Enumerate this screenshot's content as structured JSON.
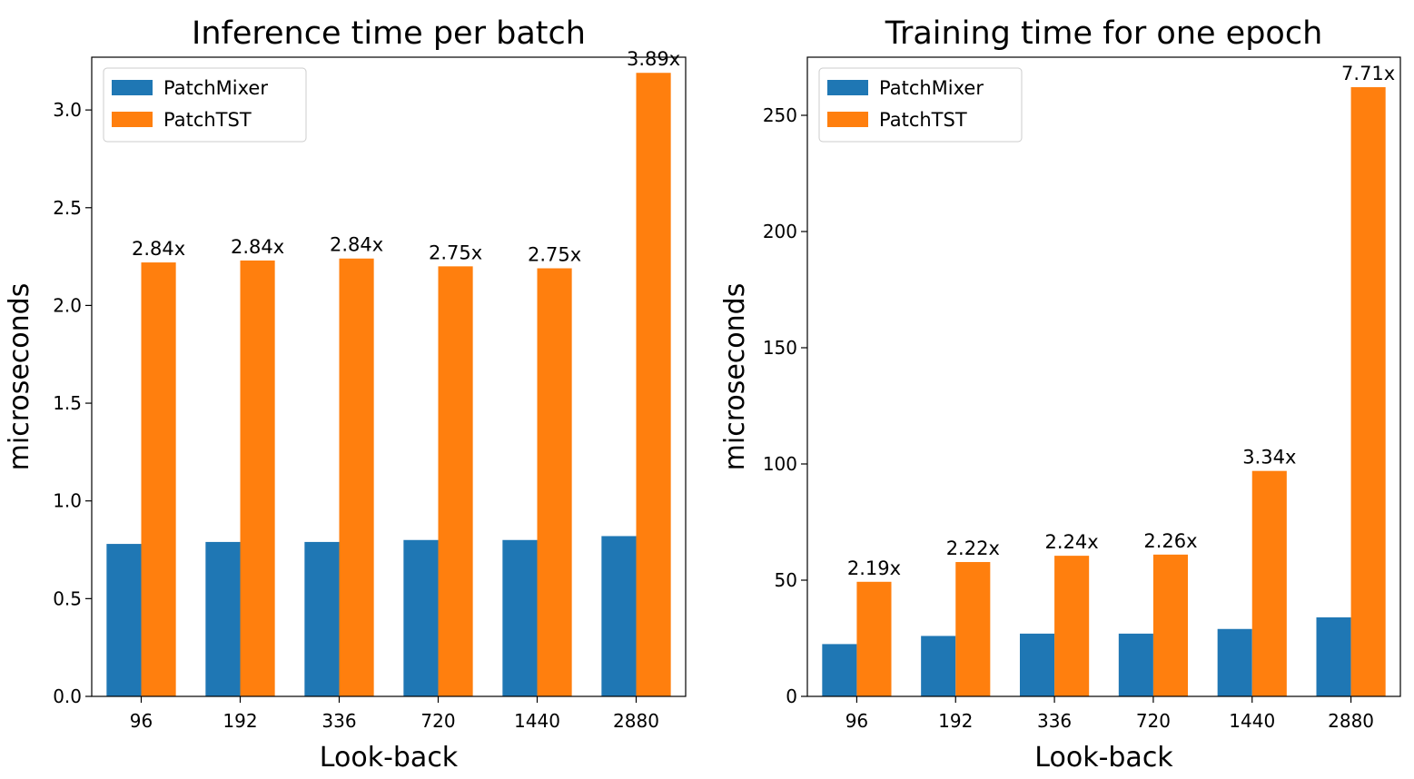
{
  "colors": {
    "PatchMixer": "#1f77b4",
    "PatchTST": "#ff7f0e"
  },
  "chart_data": [
    {
      "type": "bar",
      "title": "Inference time per batch",
      "xlabel": "Look-back",
      "ylabel": "microseconds",
      "categories": [
        "96",
        "192",
        "336",
        "720",
        "1440",
        "2880"
      ],
      "series": [
        {
          "name": "PatchMixer",
          "values": [
            0.78,
            0.79,
            0.79,
            0.8,
            0.8,
            0.82
          ]
        },
        {
          "name": "PatchTST",
          "values": [
            2.22,
            2.23,
            2.24,
            2.2,
            2.19,
            3.19
          ]
        }
      ],
      "annotations": [
        "2.84x",
        "2.84x",
        "2.84x",
        "2.75x",
        "2.75x",
        "3.89x"
      ],
      "ylim": [
        0,
        3.27
      ],
      "yticks": [
        0.0,
        0.5,
        1.0,
        1.5,
        2.0,
        2.5,
        3.0
      ],
      "ytick_labels": [
        "0.0",
        "0.5",
        "1.0",
        "1.5",
        "2.0",
        "2.5",
        "3.0"
      ],
      "legend": "top-left",
      "grid": false
    },
    {
      "type": "bar",
      "title": "Training time for one epoch",
      "xlabel": "Look-back",
      "ylabel": "microseconds",
      "categories": [
        "96",
        "192",
        "336",
        "720",
        "1440",
        "2880"
      ],
      "series": [
        {
          "name": "PatchMixer",
          "values": [
            22.5,
            26.0,
            27.0,
            27.0,
            29.0,
            34.0
          ]
        },
        {
          "name": "PatchTST",
          "values": [
            49.3,
            57.8,
            60.5,
            61.0,
            97.0,
            262.1
          ]
        }
      ],
      "annotations": [
        "2.19x",
        "2.22x",
        "2.24x",
        "2.26x",
        "3.34x",
        "7.71x"
      ],
      "ylim": [
        0,
        275
      ],
      "yticks": [
        0,
        50,
        100,
        150,
        200,
        250
      ],
      "ytick_labels": [
        "0",
        "50",
        "100",
        "150",
        "200",
        "250"
      ],
      "legend": "top-left",
      "grid": false
    }
  ]
}
